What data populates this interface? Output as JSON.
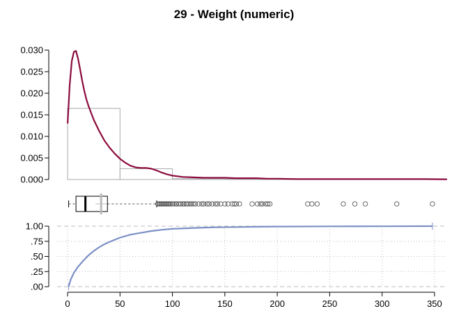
{
  "chart_data": {
    "type": "histogram-density-boxplot-ecdf",
    "title": "29 - Weight (numeric)",
    "x_ticks": [
      "0",
      "50",
      "100",
      "150",
      "200",
      "250",
      "300",
      "350"
    ],
    "x_tick_values": [
      0,
      50,
      100,
      150,
      200,
      250,
      300,
      350
    ],
    "xlim": [
      -10,
      362
    ],
    "colors": {
      "density": "#8b0a3c",
      "histogram": "#aaaaaa",
      "ecdf": "#7a8fc4",
      "boxplot": "#000000",
      "grid": "#bbbbbb"
    },
    "histogram": {
      "ylim": [
        0,
        0.03
      ],
      "y_ticks": [
        "0.000",
        "0.005",
        "0.010",
        "0.015",
        "0.020",
        "0.025",
        "0.030"
      ],
      "y_tick_values": [
        0,
        0.005,
        0.01,
        0.015,
        0.02,
        0.025,
        0.03
      ],
      "bins": [
        {
          "x0": 0,
          "x1": 50,
          "density": 0.0165
        },
        {
          "x0": 50,
          "x1": 100,
          "density": 0.0025
        },
        {
          "x0": 100,
          "x1": 150,
          "density": 0.0002
        },
        {
          "x0": 150,
          "x1": 200,
          "density": 0.0001
        },
        {
          "x0": 200,
          "x1": 250,
          "density": 3e-05
        },
        {
          "x0": 250,
          "x1": 300,
          "density": 3e-05
        },
        {
          "x0": 300,
          "x1": 350,
          "density": 2e-05
        }
      ]
    },
    "density": {
      "x": [
        0,
        2,
        4,
        6,
        8,
        10,
        12,
        14,
        16,
        18,
        20,
        25,
        30,
        35,
        40,
        45,
        50,
        55,
        60,
        65,
        70,
        75,
        80,
        85,
        90,
        95,
        100,
        110,
        120,
        130,
        140,
        150,
        160,
        170,
        180,
        190,
        200,
        220,
        240,
        260,
        280,
        300,
        320,
        340,
        362
      ],
      "y": [
        0.013,
        0.022,
        0.0275,
        0.0296,
        0.0298,
        0.028,
        0.0255,
        0.0228,
        0.0205,
        0.0185,
        0.017,
        0.0138,
        0.0113,
        0.0091,
        0.0074,
        0.006,
        0.0048,
        0.0039,
        0.0032,
        0.0028,
        0.0027,
        0.0027,
        0.0025,
        0.0021,
        0.0016,
        0.0012,
        0.0009,
        0.0006,
        0.0005,
        0.0004,
        0.0004,
        0.0004,
        0.0003,
        0.0003,
        0.0003,
        0.0002,
        0.0002,
        0.0001,
        0.0001,
        0.0001,
        0.0001,
        0.0001,
        0.0001,
        0.0001,
        5e-05
      ]
    },
    "boxplot": {
      "whisker_low": 1,
      "q1": 8,
      "median": 17,
      "q3": 38,
      "mean": 32,
      "whisker_high": 85,
      "outliers": [
        86,
        87,
        88,
        89,
        90,
        91,
        92,
        93,
        94,
        95,
        96,
        97,
        98,
        100,
        101,
        103,
        104,
        106,
        108,
        110,
        111,
        113,
        115,
        117,
        118,
        120,
        122,
        125,
        128,
        130,
        133,
        135,
        138,
        141,
        143,
        146,
        150,
        153,
        157,
        159,
        161,
        164,
        176,
        181,
        184,
        186,
        189,
        191,
        193,
        229,
        233,
        238,
        263,
        274,
        284,
        314,
        348
      ]
    },
    "ecdf": {
      "ylim": [
        0,
        1
      ],
      "y_ticks": [
        ".00",
        ".25",
        ".50",
        ".75",
        "1.00"
      ],
      "y_tick_values": [
        0,
        0.25,
        0.5,
        0.75,
        1.0
      ],
      "x": [
        1,
        3,
        6,
        10,
        15,
        20,
        25,
        30,
        35,
        40,
        50,
        60,
        70,
        80,
        90,
        100,
        120,
        140,
        160,
        180,
        200,
        250,
        300,
        348
      ],
      "y": [
        0.0,
        0.12,
        0.23,
        0.33,
        0.43,
        0.52,
        0.59,
        0.65,
        0.7,
        0.74,
        0.81,
        0.86,
        0.89,
        0.92,
        0.94,
        0.955,
        0.97,
        0.98,
        0.985,
        0.99,
        0.993,
        0.996,
        0.998,
        1.0
      ]
    }
  }
}
